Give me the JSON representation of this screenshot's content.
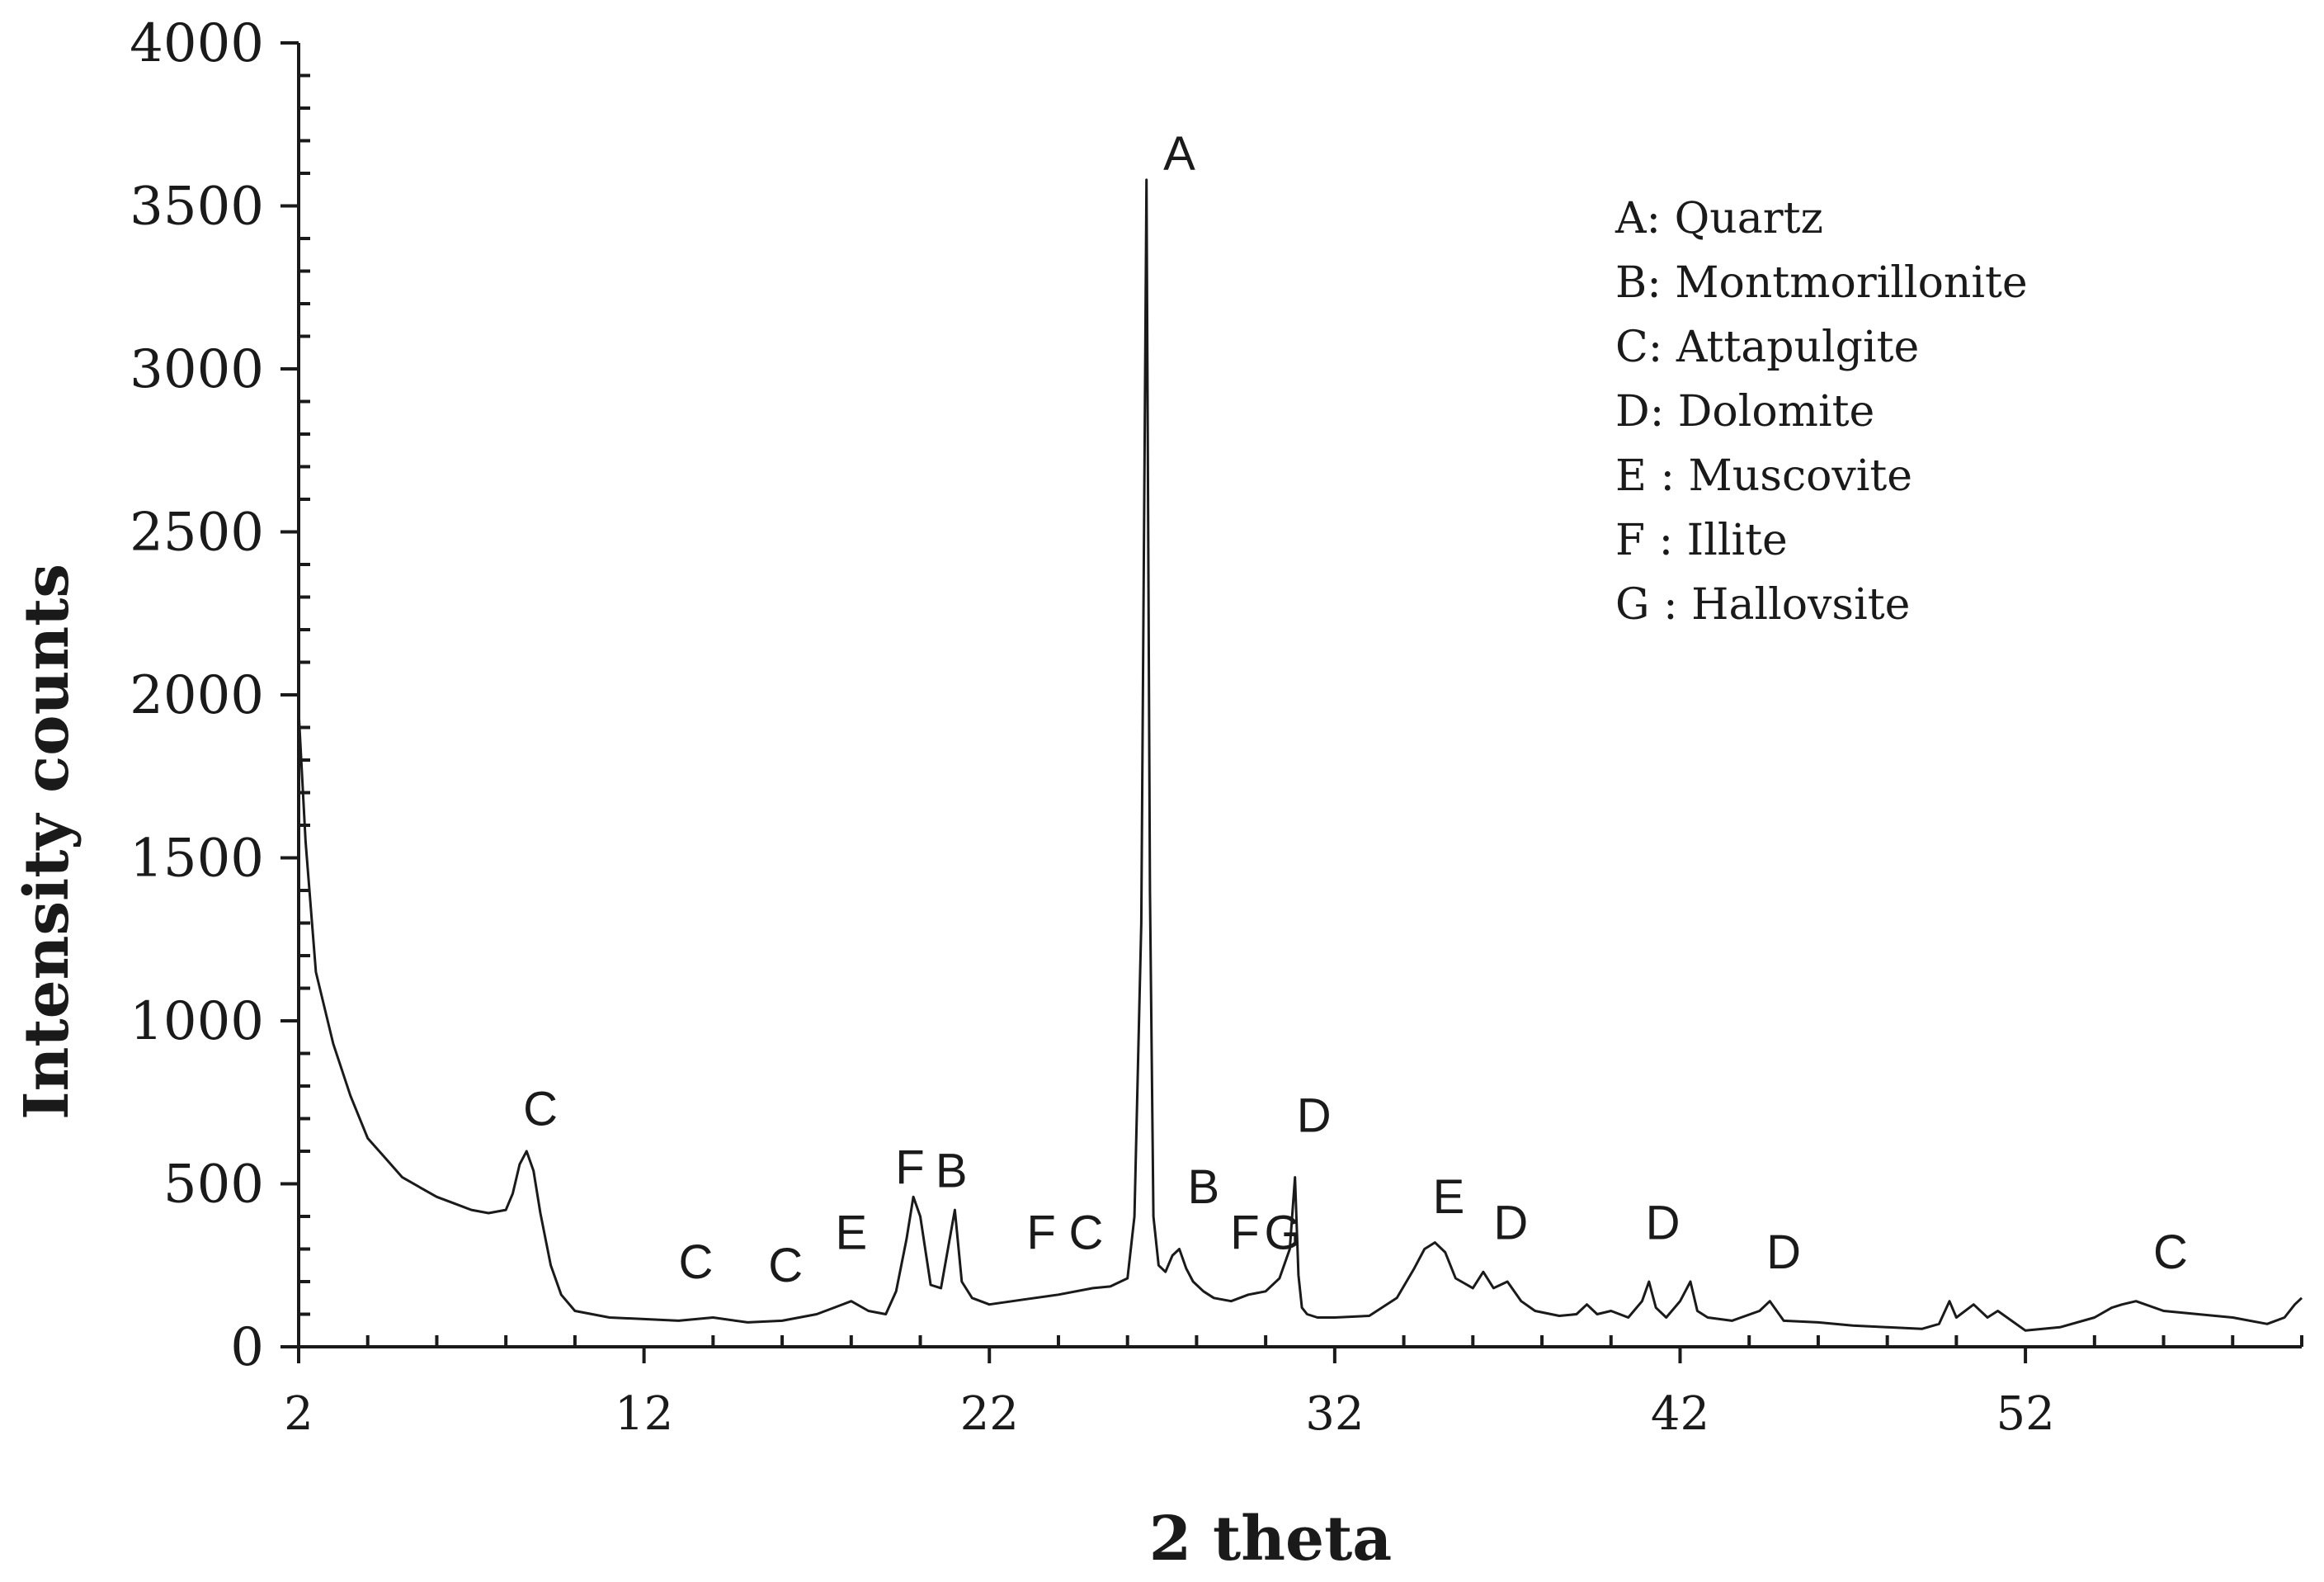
{
  "chart_data": {
    "type": "line",
    "xlabel": "2 theta",
    "ylabel": "Intensity counts",
    "xlim": [
      2,
      60
    ],
    "ylim": [
      0,
      4000
    ],
    "xticks": [
      "2",
      "12",
      "22",
      "32",
      "42",
      "52"
    ],
    "yticks": [
      "0",
      "500",
      "1000",
      "1500",
      "2000",
      "2500",
      "3000",
      "3500",
      "4000"
    ],
    "grid": false,
    "legend_position": "top-right",
    "legend": [
      "A: Quartz",
      "B: Montmorillonite",
      "C: Attapulgite",
      "D: Dolomite",
      "E : Muscovite",
      "F : Illite",
      "G : Hallovsite"
    ],
    "series": [
      {
        "x": [
          2,
          2.2,
          2.5,
          3,
          3.5,
          4,
          4.5,
          5,
          5.5,
          6,
          6.5,
          7,
          7.5,
          8,
          8.2,
          8.4,
          8.6,
          8.8,
          9,
          9.3,
          9.6,
          10,
          11,
          12,
          13,
          14,
          15,
          16,
          17,
          17.5,
          18,
          18.5,
          19,
          19.3,
          19.6,
          19.8,
          20,
          20.3,
          20.6,
          20.8,
          21,
          21.2,
          21.5,
          22,
          23,
          24,
          25,
          25.5,
          26,
          26.2,
          26.4,
          26.55,
          26.65,
          26.75,
          26.9,
          27.1,
          27.3,
          27.5,
          27.7,
          27.9,
          28.2,
          28.5,
          29,
          29.5,
          30,
          30.4,
          30.7,
          30.85,
          30.95,
          31.05,
          31.2,
          31.5,
          32,
          33,
          33.8,
          34.3,
          34.6,
          34.9,
          35.2,
          35.5,
          36,
          36.3,
          36.6,
          37,
          37.4,
          37.8,
          38.5,
          39,
          39.3,
          39.6,
          40,
          40.5,
          40.9,
          41.1,
          41.3,
          41.6,
          42,
          42.3,
          42.5,
          42.8,
          43.5,
          44.3,
          44.6,
          45,
          46,
          47,
          48,
          49,
          49.5,
          49.8,
          50,
          50.5,
          50.9,
          51.2,
          52,
          53,
          54,
          54.5,
          54.8,
          55.2,
          56,
          57,
          58,
          59,
          59.5,
          59.8,
          60
        ],
        "values": [
          1950,
          1550,
          1150,
          930,
          770,
          640,
          580,
          520,
          490,
          460,
          440,
          420,
          410,
          420,
          470,
          560,
          600,
          540,
          410,
          250,
          160,
          110,
          90,
          85,
          80,
          90,
          75,
          80,
          100,
          120,
          140,
          110,
          100,
          170,
          330,
          460,
          400,
          190,
          180,
          300,
          420,
          200,
          150,
          130,
          145,
          160,
          180,
          185,
          210,
          400,
          1300,
          3580,
          1400,
          400,
          250,
          230,
          280,
          300,
          240,
          200,
          170,
          150,
          140,
          160,
          170,
          210,
          300,
          520,
          220,
          120,
          100,
          90,
          90,
          95,
          150,
          240,
          300,
          320,
          290,
          210,
          180,
          230,
          180,
          200,
          140,
          110,
          95,
          100,
          130,
          100,
          110,
          90,
          140,
          200,
          120,
          90,
          140,
          200,
          110,
          90,
          80,
          110,
          140,
          80,
          75,
          65,
          60,
          55,
          70,
          140,
          90,
          130,
          90,
          110,
          50,
          60,
          90,
          120,
          130,
          140,
          110,
          100,
          90,
          70,
          90,
          130,
          150
        ]
      }
    ],
    "annotations": [
      {
        "text": "A",
        "x": 27.5,
        "y": 3610
      },
      {
        "text": "C",
        "x": 9.0,
        "y": 680
      },
      {
        "text": "C",
        "x": 13.5,
        "y": 210
      },
      {
        "text": "C",
        "x": 16.1,
        "y": 200
      },
      {
        "text": "E",
        "x": 18.0,
        "y": 300
      },
      {
        "text": "F",
        "x": 19.7,
        "y": 500
      },
      {
        "text": "B",
        "x": 20.9,
        "y": 490
      },
      {
        "text": "F",
        "x": 23.5,
        "y": 300
      },
      {
        "text": "C",
        "x": 24.8,
        "y": 300
      },
      {
        "text": "B",
        "x": 28.2,
        "y": 440
      },
      {
        "text": "F",
        "x": 29.4,
        "y": 300
      },
      {
        "text": "G",
        "x": 30.5,
        "y": 300
      },
      {
        "text": "D",
        "x": 31.4,
        "y": 660
      },
      {
        "text": "E",
        "x": 35.3,
        "y": 410
      },
      {
        "text": "D",
        "x": 37.1,
        "y": 330
      },
      {
        "text": "D",
        "x": 41.5,
        "y": 330
      },
      {
        "text": "D",
        "x": 45.0,
        "y": 240
      },
      {
        "text": "C",
        "x": 56.2,
        "y": 240
      }
    ]
  }
}
